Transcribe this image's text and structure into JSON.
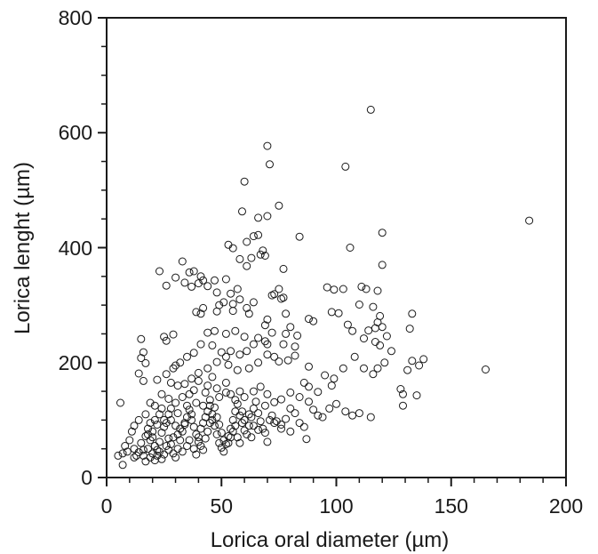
{
  "chart_data": {
    "type": "scatter",
    "title": "",
    "xlabel": "Lorica oral diameter (µm)",
    "ylabel": "Lorica lenght (µm)",
    "xlim": [
      0,
      200
    ],
    "ylim": [
      0,
      800
    ],
    "x_ticks": [
      "0",
      "50",
      "100",
      "150",
      "200"
    ],
    "y_ticks": [
      "0",
      "200",
      "400",
      "600",
      "800"
    ],
    "grid": false,
    "legend": "none",
    "marker": "open-circle",
    "points": [
      [
        115,
        640
      ],
      [
        184,
        447
      ],
      [
        70,
        577
      ],
      [
        71,
        545
      ],
      [
        104,
        541
      ],
      [
        60,
        515
      ],
      [
        75,
        473
      ],
      [
        66,
        452
      ],
      [
        70,
        455
      ],
      [
        59,
        463
      ],
      [
        120,
        426
      ],
      [
        64,
        420
      ],
      [
        84,
        419
      ],
      [
        106,
        400
      ],
      [
        66,
        422
      ],
      [
        61,
        410
      ],
      [
        68,
        395
      ],
      [
        55,
        399
      ],
      [
        53,
        405
      ],
      [
        63,
        382
      ],
      [
        69,
        386
      ],
      [
        67,
        388
      ],
      [
        58,
        380
      ],
      [
        120,
        370
      ],
      [
        33,
        376
      ],
      [
        61,
        368
      ],
      [
        77,
        363
      ],
      [
        38,
        359
      ],
      [
        23,
        359
      ],
      [
        36,
        357
      ],
      [
        30,
        348
      ],
      [
        41,
        350
      ],
      [
        42,
        343
      ],
      [
        47,
        343
      ],
      [
        52,
        345
      ],
      [
        40,
        338
      ],
      [
        34,
        339
      ],
      [
        26,
        334
      ],
      [
        37,
        332
      ],
      [
        44,
        333
      ],
      [
        57,
        328
      ],
      [
        48,
        322
      ],
      [
        96,
        331
      ],
      [
        103,
        328
      ],
      [
        113,
        328
      ],
      [
        118,
        325
      ],
      [
        75,
        328
      ],
      [
        73,
        319
      ],
      [
        77,
        313
      ],
      [
        76,
        311
      ],
      [
        72,
        317
      ],
      [
        99,
        327
      ],
      [
        111,
        332
      ],
      [
        54,
        320
      ],
      [
        58,
        310
      ],
      [
        55,
        302
      ],
      [
        61,
        295
      ],
      [
        64,
        305
      ],
      [
        42,
        295
      ],
      [
        48,
        289
      ],
      [
        39,
        288
      ],
      [
        41,
        285
      ],
      [
        51,
        305
      ],
      [
        49,
        300
      ],
      [
        55,
        290
      ],
      [
        62,
        285
      ],
      [
        70,
        275
      ],
      [
        69,
        265
      ],
      [
        78,
        285
      ],
      [
        80,
        262
      ],
      [
        88,
        276
      ],
      [
        90,
        272
      ],
      [
        98,
        288
      ],
      [
        101,
        286
      ],
      [
        110,
        301
      ],
      [
        116,
        297
      ],
      [
        119,
        281
      ],
      [
        118,
        270
      ],
      [
        120,
        262
      ],
      [
        133,
        285
      ],
      [
        132,
        259
      ],
      [
        105,
        266
      ],
      [
        107,
        255
      ],
      [
        114,
        256
      ],
      [
        117,
        260
      ],
      [
        72,
        252
      ],
      [
        78,
        250
      ],
      [
        83,
        247
      ],
      [
        77,
        232
      ],
      [
        82,
        228
      ],
      [
        47,
        255
      ],
      [
        44,
        252
      ],
      [
        52,
        250
      ],
      [
        56,
        255
      ],
      [
        60,
        245
      ],
      [
        66,
        243
      ],
      [
        64,
        232
      ],
      [
        69,
        237
      ],
      [
        70,
        232
      ],
      [
        61,
        220
      ],
      [
        58,
        214
      ],
      [
        54,
        220
      ],
      [
        50,
        218
      ],
      [
        46,
        230
      ],
      [
        41,
        232
      ],
      [
        38,
        217
      ],
      [
        35,
        210
      ],
      [
        32,
        200
      ],
      [
        30,
        195
      ],
      [
        29,
        190
      ],
      [
        26,
        238
      ],
      [
        25,
        245
      ],
      [
        29,
        249
      ],
      [
        15,
        241
      ],
      [
        16,
        218
      ],
      [
        15,
        208
      ],
      [
        17,
        199
      ],
      [
        14,
        181
      ],
      [
        16,
        168
      ],
      [
        22,
        170
      ],
      [
        26,
        180
      ],
      [
        28,
        165
      ],
      [
        31,
        160
      ],
      [
        34,
        163
      ],
      [
        37,
        172
      ],
      [
        40,
        182
      ],
      [
        44,
        190
      ],
      [
        48,
        201
      ],
      [
        52,
        210
      ],
      [
        53,
        196
      ],
      [
        57,
        187
      ],
      [
        62,
        190
      ],
      [
        66,
        200
      ],
      [
        70,
        214
      ],
      [
        73,
        210
      ],
      [
        75,
        202
      ],
      [
        79,
        204
      ],
      [
        82,
        212
      ],
      [
        88,
        193
      ],
      [
        95,
        178
      ],
      [
        99,
        172
      ],
      [
        103,
        190
      ],
      [
        108,
        210
      ],
      [
        112,
        190
      ],
      [
        116,
        180
      ],
      [
        118,
        190
      ],
      [
        121,
        200
      ],
      [
        124,
        220
      ],
      [
        112,
        242
      ],
      [
        117,
        236
      ],
      [
        119,
        230
      ],
      [
        122,
        246
      ],
      [
        131,
        187
      ],
      [
        133,
        203
      ],
      [
        136,
        195
      ],
      [
        138,
        206
      ],
      [
        165,
        188
      ],
      [
        128,
        154
      ],
      [
        129,
        145
      ],
      [
        129,
        125
      ],
      [
        135,
        143
      ],
      [
        98,
        160
      ],
      [
        92,
        149
      ],
      [
        88,
        158
      ],
      [
        86,
        165
      ],
      [
        84,
        140
      ],
      [
        80,
        148
      ],
      [
        76,
        136
      ],
      [
        73,
        131
      ],
      [
        70,
        145
      ],
      [
        67,
        158
      ],
      [
        64,
        150
      ],
      [
        60,
        140
      ],
      [
        56,
        135
      ],
      [
        52,
        148
      ],
      [
        48,
        155
      ],
      [
        44,
        160
      ],
      [
        40,
        168
      ],
      [
        36,
        145
      ],
      [
        33,
        140
      ],
      [
        30,
        130
      ],
      [
        27,
        137
      ],
      [
        24,
        145
      ],
      [
        21,
        125
      ],
      [
        19,
        130
      ],
      [
        17,
        110
      ],
      [
        14,
        100
      ],
      [
        12,
        90
      ],
      [
        11,
        80
      ],
      [
        10,
        65
      ],
      [
        8,
        55
      ],
      [
        7,
        42
      ],
      [
        5,
        38
      ],
      [
        7,
        22
      ],
      [
        6,
        130
      ],
      [
        9,
        45
      ],
      [
        12,
        50
      ],
      [
        13,
        38
      ],
      [
        15,
        60
      ],
      [
        16,
        48
      ],
      [
        17,
        72
      ],
      [
        18,
        85
      ],
      [
        19,
        95
      ],
      [
        20,
        70
      ],
      [
        21,
        55
      ],
      [
        22,
        48
      ],
      [
        23,
        62
      ],
      [
        24,
        78
      ],
      [
        25,
        88
      ],
      [
        26,
        95
      ],
      [
        27,
        68
      ],
      [
        28,
        58
      ],
      [
        29,
        42
      ],
      [
        30,
        35
      ],
      [
        31,
        50
      ],
      [
        32,
        65
      ],
      [
        33,
        80
      ],
      [
        34,
        92
      ],
      [
        35,
        105
      ],
      [
        36,
        118
      ],
      [
        37,
        100
      ],
      [
        38,
        88
      ],
      [
        39,
        75
      ],
      [
        40,
        62
      ],
      [
        41,
        55
      ],
      [
        42,
        48
      ],
      [
        43,
        68
      ],
      [
        44,
        80
      ],
      [
        45,
        95
      ],
      [
        46,
        110
      ],
      [
        47,
        122
      ],
      [
        48,
        105
      ],
      [
        49,
        92
      ],
      [
        50,
        78
      ],
      [
        51,
        65
      ],
      [
        52,
        58
      ],
      [
        53,
        72
      ],
      [
        54,
        85
      ],
      [
        55,
        100
      ],
      [
        56,
        115
      ],
      [
        57,
        128
      ],
      [
        58,
        108
      ],
      [
        59,
        95
      ],
      [
        60,
        82
      ],
      [
        61,
        75
      ],
      [
        62,
        90
      ],
      [
        63,
        105
      ],
      [
        64,
        120
      ],
      [
        65,
        132
      ],
      [
        66,
        112
      ],
      [
        67,
        98
      ],
      [
        68,
        85
      ],
      [
        69,
        125
      ],
      [
        70,
        62
      ],
      [
        72,
        108
      ],
      [
        74,
        98
      ],
      [
        76,
        85
      ],
      [
        78,
        102
      ],
      [
        80,
        120
      ],
      [
        82,
        112
      ],
      [
        84,
        95
      ],
      [
        86,
        88
      ],
      [
        88,
        132
      ],
      [
        90,
        118
      ],
      [
        92,
        108
      ],
      [
        94,
        105
      ],
      [
        97,
        120
      ],
      [
        100,
        128
      ],
      [
        104,
        115
      ],
      [
        107,
        108
      ],
      [
        110,
        112
      ],
      [
        115,
        105
      ],
      [
        87,
        67
      ],
      [
        80,
        80
      ],
      [
        76,
        92
      ],
      [
        73,
        95
      ],
      [
        71,
        100
      ],
      [
        69,
        78
      ],
      [
        66,
        83
      ],
      [
        64,
        90
      ],
      [
        27,
        48
      ],
      [
        26,
        55
      ],
      [
        25,
        40
      ],
      [
        24,
        32
      ],
      [
        23,
        45
      ],
      [
        22,
        38
      ],
      [
        21,
        30
      ],
      [
        20,
        42
      ],
      [
        19,
        35
      ],
      [
        18,
        50
      ],
      [
        17,
        28
      ],
      [
        16,
        38
      ],
      [
        14,
        44
      ],
      [
        12,
        35
      ],
      [
        33,
        45
      ],
      [
        35,
        55
      ],
      [
        36,
        65
      ],
      [
        38,
        50
      ],
      [
        39,
        40
      ],
      [
        40,
        70
      ],
      [
        41,
        85
      ],
      [
        42,
        95
      ],
      [
        43,
        105
      ],
      [
        44,
        115
      ],
      [
        45,
        125
      ],
      [
        46,
        100
      ],
      [
        47,
        90
      ],
      [
        48,
        75
      ],
      [
        49,
        60
      ],
      [
        50,
        52
      ],
      [
        51,
        45
      ],
      [
        53,
        60
      ],
      [
        54,
        70
      ],
      [
        55,
        80
      ],
      [
        56,
        90
      ],
      [
        57,
        70
      ],
      [
        58,
        60
      ],
      [
        59,
        115
      ],
      [
        60,
        100
      ],
      [
        62,
        110
      ],
      [
        63,
        70
      ],
      [
        29,
        70
      ],
      [
        31,
        75
      ],
      [
        32,
        85
      ],
      [
        34,
        95
      ],
      [
        37,
        110
      ],
      [
        25,
        100
      ],
      [
        27,
        110
      ],
      [
        28,
        120
      ],
      [
        30,
        90
      ],
      [
        22,
        92
      ],
      [
        20,
        80
      ],
      [
        19,
        65
      ],
      [
        18,
        75
      ],
      [
        21,
        100
      ],
      [
        23,
        110
      ],
      [
        24,
        120
      ],
      [
        39,
        130
      ],
      [
        42,
        125
      ],
      [
        45,
        135
      ],
      [
        49,
        140
      ],
      [
        54,
        145
      ],
      [
        58,
        150
      ],
      [
        52,
        165
      ],
      [
        46,
        175
      ],
      [
        43,
        148
      ],
      [
        38,
        152
      ],
      [
        35,
        125
      ],
      [
        31,
        112
      ],
      [
        28,
        100
      ]
    ]
  }
}
